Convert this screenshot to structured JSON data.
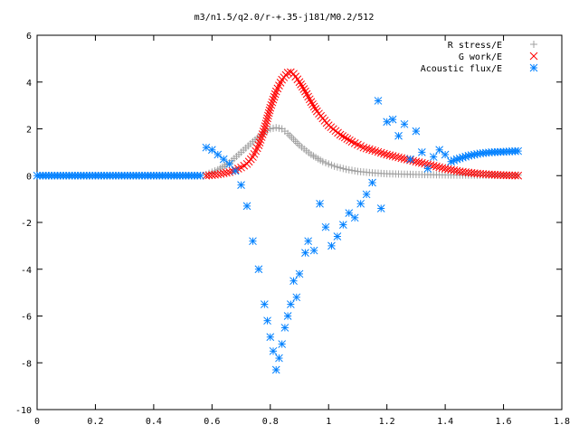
{
  "chart_data": {
    "type": "scatter",
    "title": "m3/n1.5/q2.0/r-+.35-j181/M0.2/512",
    "xlabel": "",
    "ylabel": "",
    "xlim": [
      0,
      1.8
    ],
    "ylim": [
      -10,
      6
    ],
    "xticks": [
      0,
      0.2,
      0.4,
      0.6,
      0.8,
      1.0,
      1.2,
      1.4,
      1.6,
      1.8
    ],
    "xtick_labels": [
      "0",
      "0.2",
      "0.4",
      "0.6",
      "0.8",
      "1",
      "1.2",
      "1.4",
      "1.6",
      "1.8"
    ],
    "yticks": [
      -10,
      -8,
      -6,
      -4,
      -2,
      0,
      2,
      4,
      6
    ],
    "ytick_labels": [
      "-10",
      "-8",
      "-6",
      "-4",
      "-2",
      "0",
      "2",
      "4",
      "6"
    ],
    "grid": false,
    "legend_position": "top-right",
    "series": [
      {
        "name": "R stress/E",
        "marker": "plus",
        "color": "#a0a0a0",
        "x": [
          0.58,
          0.62,
          0.66,
          0.7,
          0.74,
          0.78,
          0.8,
          0.82,
          0.84,
          0.86,
          0.88,
          0.9,
          0.94,
          0.98,
          1.02,
          1.06,
          1.1,
          1.15,
          1.2,
          1.3,
          1.4,
          1.5,
          1.6,
          1.65
        ],
        "y": [
          0.05,
          0.25,
          0.55,
          1.0,
          1.45,
          1.85,
          2.0,
          2.05,
          2.0,
          1.8,
          1.55,
          1.3,
          0.9,
          0.6,
          0.4,
          0.27,
          0.18,
          0.12,
          0.08,
          0.05,
          0.03,
          0.02,
          0.02,
          0.02
        ]
      },
      {
        "name": "G work/E",
        "marker": "cross",
        "color": "#ff0000",
        "x": [
          0.58,
          0.62,
          0.66,
          0.7,
          0.72,
          0.74,
          0.76,
          0.78,
          0.8,
          0.82,
          0.84,
          0.86,
          0.87,
          0.88,
          0.9,
          0.92,
          0.94,
          0.96,
          1.0,
          1.04,
          1.08,
          1.12,
          1.16,
          1.2,
          1.25,
          1.3,
          1.35,
          1.4,
          1.45,
          1.5,
          1.55,
          1.6,
          1.65
        ],
        "y": [
          0.0,
          0.05,
          0.15,
          0.35,
          0.5,
          0.8,
          1.3,
          2.0,
          2.9,
          3.6,
          4.1,
          4.4,
          4.42,
          4.35,
          4.0,
          3.6,
          3.15,
          2.75,
          2.15,
          1.75,
          1.45,
          1.2,
          1.05,
          0.9,
          0.75,
          0.6,
          0.45,
          0.3,
          0.18,
          0.1,
          0.05,
          0.02,
          0.0
        ]
      },
      {
        "name": "Acoustic flux/E",
        "marker": "star",
        "color": "#0080ff",
        "x": [
          0.0,
          0.04,
          0.08,
          0.12,
          0.16,
          0.2,
          0.24,
          0.28,
          0.32,
          0.36,
          0.4,
          0.44,
          0.48,
          0.52,
          0.56,
          0.58,
          0.6,
          0.62,
          0.64,
          0.66,
          0.68,
          0.7,
          0.72,
          0.74,
          0.76,
          0.78,
          0.79,
          0.8,
          0.81,
          0.82,
          0.83,
          0.84,
          0.85,
          0.86,
          0.87,
          0.88,
          0.89,
          0.9,
          0.92,
          0.93,
          0.95,
          0.97,
          0.99,
          1.01,
          1.03,
          1.05,
          1.07,
          1.09,
          1.11,
          1.13,
          1.15,
          1.17,
          1.18,
          1.2,
          1.22,
          1.24,
          1.26,
          1.28,
          1.3,
          1.32,
          1.34,
          1.36,
          1.38,
          1.4,
          1.42,
          1.44,
          1.48,
          1.52,
          1.56,
          1.6,
          1.65
        ],
        "y": [
          0.0,
          0.0,
          0.0,
          0.0,
          0.0,
          0.0,
          0.0,
          0.0,
          0.0,
          0.0,
          0.0,
          0.0,
          0.0,
          0.0,
          0.0,
          1.2,
          1.1,
          0.9,
          0.7,
          0.5,
          0.2,
          -0.4,
          -1.3,
          -2.8,
          -4.0,
          -5.5,
          -6.2,
          -6.9,
          -7.5,
          -8.3,
          -7.8,
          -7.2,
          -6.5,
          -6.0,
          -5.5,
          -4.5,
          -5.2,
          -4.2,
          -3.3,
          -2.8,
          -3.2,
          -1.2,
          -2.2,
          -3.0,
          -2.6,
          -2.1,
          -1.6,
          -1.8,
          -1.2,
          -0.8,
          -0.3,
          3.2,
          -1.4,
          2.3,
          2.4,
          1.7,
          2.2,
          0.7,
          1.9,
          1.0,
          0.3,
          0.8,
          1.1,
          0.9,
          0.6,
          0.7,
          0.85,
          0.95,
          1.0,
          1.02,
          1.05
        ]
      }
    ]
  }
}
